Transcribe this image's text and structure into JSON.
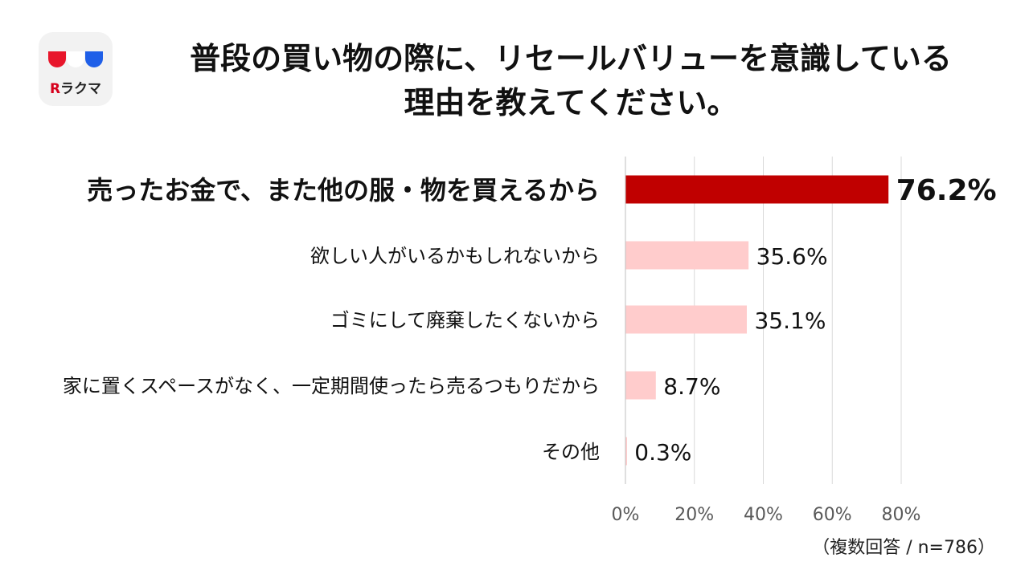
{
  "header": {
    "logo_text": "ラクマ",
    "logo_r": "R",
    "title_line1": "普段の買い物の際に、リセールバリューを意識している",
    "title_line2": "理由を教えてください。"
  },
  "footnote": "（複数回答 / n=786）",
  "colors": {
    "highlight": "#c00000",
    "other": "#ffcccc",
    "grid": "#d9d9d9"
  },
  "chart_data": {
    "type": "bar",
    "orientation": "horizontal",
    "categories": [
      "売ったお金で、また他の服・物を買えるから",
      "欲しい人がいるかもしれないから",
      "ゴミにして廃棄したくないから",
      "家に置くスペースがなく、一定期間使ったら売るつもりだから",
      "その他"
    ],
    "values": [
      76.2,
      35.6,
      35.1,
      8.7,
      0.3
    ],
    "value_labels": [
      "76.2%",
      "35.6%",
      "35.1%",
      "8.7%",
      "0.3%"
    ],
    "xlim": [
      0,
      80
    ],
    "xticks": [
      "0%",
      "20%",
      "40%",
      "60%",
      "80%"
    ],
    "xtick_values": [
      0,
      20,
      40,
      60,
      80
    ],
    "grid": true,
    "highlight_index": 0
  }
}
